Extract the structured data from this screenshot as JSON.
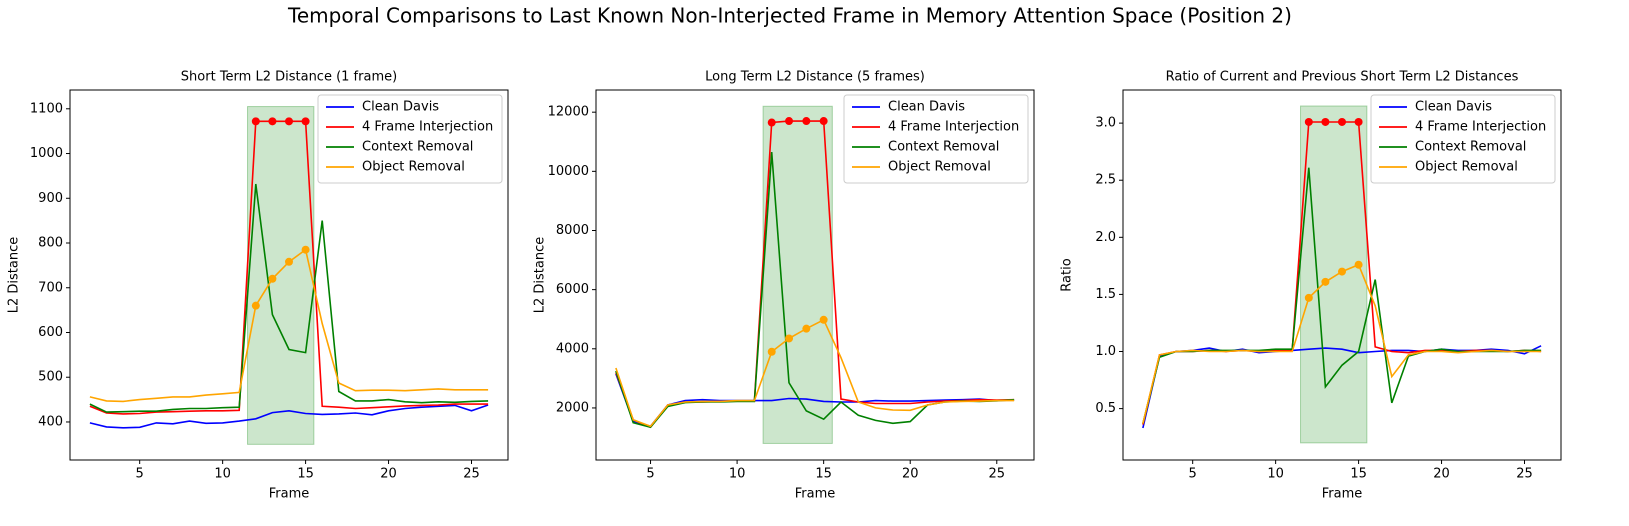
{
  "title": "Temporal Comparisons to Last Known Non-Interjected Frame in Memory Attention Space (Position 2)",
  "chart_data": [
    {
      "type": "line",
      "title": "Short Term L2 Distance (1 frame)",
      "xlabel": "Frame",
      "ylabel": "L2 Distance",
      "x": [
        2,
        3,
        4,
        5,
        6,
        7,
        8,
        9,
        10,
        11,
        12,
        13,
        14,
        15,
        16,
        17,
        18,
        19,
        20,
        21,
        22,
        23,
        24,
        25,
        26
      ],
      "xlim": [
        0.8,
        27.2
      ],
      "xticks": [
        5,
        10,
        15,
        20,
        25
      ],
      "ylim": [
        315,
        1142
      ],
      "yticks": [
        400,
        500,
        600,
        700,
        800,
        900,
        1000,
        1100
      ],
      "highlight": {
        "xlim": [
          11.5,
          15.5
        ],
        "ylim": [
          350,
          1105
        ],
        "color": "#008000"
      },
      "legend": "upper right",
      "series": [
        {
          "name": "Clean Davis",
          "color": "#0000ff",
          "values": [
            398,
            389,
            387,
            388,
            398,
            396,
            402,
            397,
            398,
            402,
            407,
            421,
            425,
            419,
            417,
            418,
            420,
            416,
            425,
            430,
            433,
            435,
            437,
            425,
            438
          ]
        },
        {
          "name": "4 Frame Interjection",
          "color": "#ff0000",
          "markers": true,
          "values": [
            435,
            420,
            418,
            419,
            422,
            423,
            424,
            425,
            425,
            426,
            1072,
            1072,
            1072,
            1072,
            435,
            433,
            430,
            432,
            434,
            436,
            437,
            438,
            440,
            440,
            440
          ]
        },
        {
          "name": "Context Removal",
          "color": "#008000",
          "values": [
            440,
            422,
            423,
            424,
            424,
            428,
            430,
            430,
            432,
            433,
            932,
            640,
            562,
            555,
            850,
            468,
            447,
            447,
            450,
            445,
            443,
            445,
            444,
            446,
            447
          ]
        },
        {
          "name": "Object Removal",
          "color": "#ffa500",
          "markers": true,
          "values": [
            456,
            447,
            446,
            450,
            453,
            456,
            456,
            460,
            463,
            466,
            660,
            720,
            758,
            785,
            620,
            487,
            470,
            471,
            471,
            470,
            472,
            474,
            472,
            472,
            472
          ]
        }
      ]
    },
    {
      "type": "line",
      "title": "Long Term L2 Distance (5 frames)",
      "xlabel": "Frame",
      "ylabel": "L2 Distance",
      "x": [
        3,
        4,
        5,
        6,
        7,
        8,
        9,
        10,
        11,
        12,
        13,
        14,
        15,
        16,
        17,
        18,
        19,
        20,
        21,
        22,
        23,
        24,
        25,
        26
      ],
      "xlim": [
        1.85,
        27.15
      ],
      "xticks": [
        5,
        10,
        15,
        20,
        25
      ],
      "ylim": [
        240,
        12750
      ],
      "yticks": [
        2000,
        4000,
        6000,
        8000,
        10000,
        12000
      ],
      "highlight": {
        "xlim": [
          11.5,
          15.5
        ],
        "ylim": [
          800,
          12200
        ],
        "color": "#008000"
      },
      "legend": "upper right",
      "series": [
        {
          "name": "Clean Davis",
          "color": "#0000ff",
          "values": [
            3150,
            1550,
            1380,
            2100,
            2250,
            2280,
            2250,
            2250,
            2250,
            2250,
            2320,
            2300,
            2220,
            2200,
            2200,
            2250,
            2230,
            2230,
            2250,
            2270,
            2280,
            2300,
            2250,
            2270
          ]
        },
        {
          "name": "4 Frame Interjection",
          "color": "#ff0000",
          "markers": true,
          "values": [
            3200,
            1600,
            1350,
            2100,
            2200,
            2200,
            2220,
            2240,
            2230,
            11650,
            11700,
            11700,
            11700,
            2300,
            2200,
            2150,
            2150,
            2150,
            2200,
            2230,
            2250,
            2280,
            2270,
            2280
          ]
        },
        {
          "name": "Context Removal",
          "color": "#008000",
          "values": [
            3250,
            1500,
            1350,
            2050,
            2180,
            2200,
            2200,
            2220,
            2220,
            10650,
            2850,
            1900,
            1620,
            2200,
            1750,
            1580,
            1480,
            1540,
            2100,
            2200,
            2230,
            2220,
            2240,
            2280
          ]
        },
        {
          "name": "Object Removal",
          "color": "#ffa500",
          "markers": true,
          "values": [
            3350,
            1600,
            1380,
            2100,
            2200,
            2220,
            2220,
            2250,
            2250,
            3900,
            4350,
            4680,
            4980,
            3700,
            2200,
            2000,
            1930,
            1920,
            2100,
            2200,
            2220,
            2230,
            2250,
            2250
          ]
        }
      ]
    },
    {
      "type": "line",
      "title": "Ratio of Current and Previous Short Term L2 Distances",
      "xlabel": "Frame",
      "ylabel": "Ratio",
      "x": [
        2,
        3,
        4,
        5,
        6,
        7,
        8,
        9,
        10,
        11,
        12,
        13,
        14,
        15,
        16,
        17,
        18,
        19,
        20,
        21,
        22,
        23,
        24,
        25,
        26
      ],
      "xlim": [
        0.8,
        27.2
      ],
      "xticks": [
        5,
        10,
        15,
        20,
        25
      ],
      "ylim": [
        0.05,
        3.29
      ],
      "yticks": [
        0.5,
        {
          "value": 1,
          "label": "1.0"
        },
        1.5,
        {
          "value": 2,
          "label": "2.0"
        },
        2.5,
        {
          "value": 3,
          "label": "3.0"
        }
      ],
      "highlight": {
        "xlim": [
          11.5,
          15.5
        ],
        "ylim": [
          0.2,
          3.15
        ],
        "color": "#008000"
      },
      "legend": "upper right",
      "series": [
        {
          "name": "Clean Davis",
          "color": "#0000ff",
          "values": [
            0.33,
            0.96,
            1.0,
            1.01,
            1.03,
            1.0,
            1.02,
            0.99,
            1.0,
            1.01,
            1.02,
            1.03,
            1.02,
            0.99,
            1.0,
            1.01,
            1.01,
            1.0,
            1.02,
            1.01,
            1.01,
            1.02,
            1.01,
            0.98,
            1.05
          ]
        },
        {
          "name": "4 Frame Interjection",
          "color": "#ff0000",
          "markers": true,
          "values": [
            0.36,
            0.97,
            1.0,
            1.0,
            1.01,
            1.0,
            1.01,
            1.0,
            1.01,
            1.01,
            3.01,
            3.01,
            3.01,
            3.01,
            1.04,
            1.0,
            0.99,
            1.01,
            1.01,
            1.0,
            1.01,
            1.01,
            1.0,
            1.01,
            1.0
          ]
        },
        {
          "name": "Context Removal",
          "color": "#008000",
          "values": [
            0.37,
            0.95,
            1.0,
            1.0,
            1.01,
            1.01,
            1.01,
            1.01,
            1.02,
            1.02,
            2.61,
            0.69,
            0.88,
            1.0,
            1.63,
            0.55,
            0.96,
            1.0,
            1.02,
            1.0,
            1.0,
            1.0,
            1.0,
            1.01,
            1.01
          ]
        },
        {
          "name": "Object Removal",
          "color": "#ffa500",
          "markers": true,
          "values": [
            0.37,
            0.97,
            1.0,
            1.01,
            1.0,
            1.0,
            1.01,
            1.0,
            1.0,
            1.0,
            1.47,
            1.61,
            1.7,
            1.76,
            1.4,
            0.78,
            0.97,
            1.0,
            1.0,
            0.99,
            1.0,
            1.01,
            1.0,
            1.0,
            1.0
          ]
        }
      ]
    }
  ]
}
